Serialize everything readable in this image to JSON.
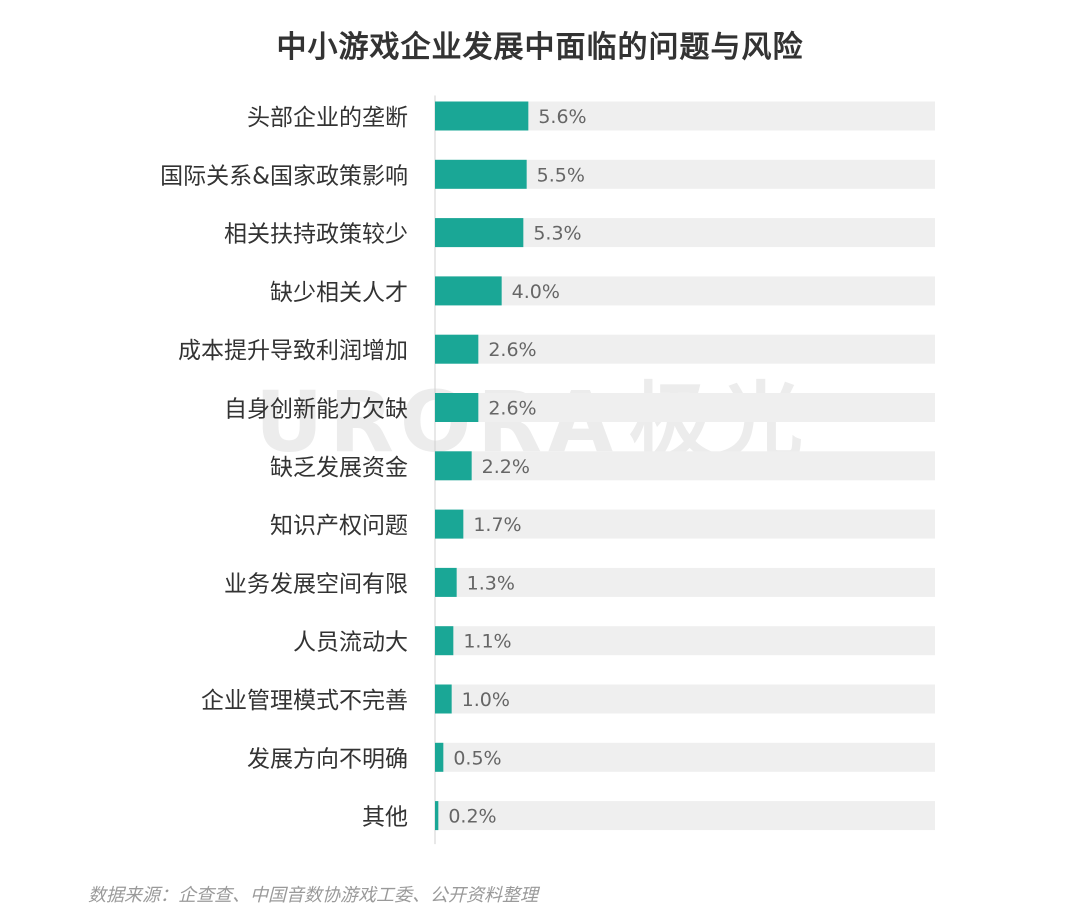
{
  "colors": {
    "bar": "#1aa796",
    "track": "#efefef",
    "label": "#333333",
    "value": "#666666",
    "axis": "#d0d0d0"
  },
  "watermark": {
    "text": "URORA",
    "text_cn": "极光"
  },
  "source": "数据来源：企查查、中国音数协游戏工委、公开资料整理",
  "chart_data": {
    "type": "bar",
    "orientation": "horizontal",
    "title": "中小游戏企业发展中面临的问题与风险",
    "unit": "%",
    "xlim": [
      0,
      30
    ],
    "categories": [
      "头部企业的垄断",
      "国际关系&国家政策影响",
      "相关扶持政策较少",
      "缺少相关人才",
      "成本提升导致利润增加",
      "自身创新能力欠缺",
      "缺乏发展资金",
      "知识产权问题",
      "业务发展空间有限",
      "人员流动大",
      "企业管理模式不完善",
      "发展方向不明确",
      "其他"
    ],
    "values": [
      5.6,
      5.5,
      5.3,
      4.0,
      2.6,
      2.6,
      2.2,
      1.7,
      1.3,
      1.1,
      1.0,
      0.5,
      0.2
    ],
    "value_labels": [
      "5.6%",
      "5.5%",
      "5.3%",
      "4.0%",
      "2.6%",
      "2.6%",
      "2.2%",
      "1.7%",
      "1.3%",
      "1.1%",
      "1.0%",
      "0.5%",
      "0.2%"
    ],
    "grid": false,
    "legend": "none"
  }
}
